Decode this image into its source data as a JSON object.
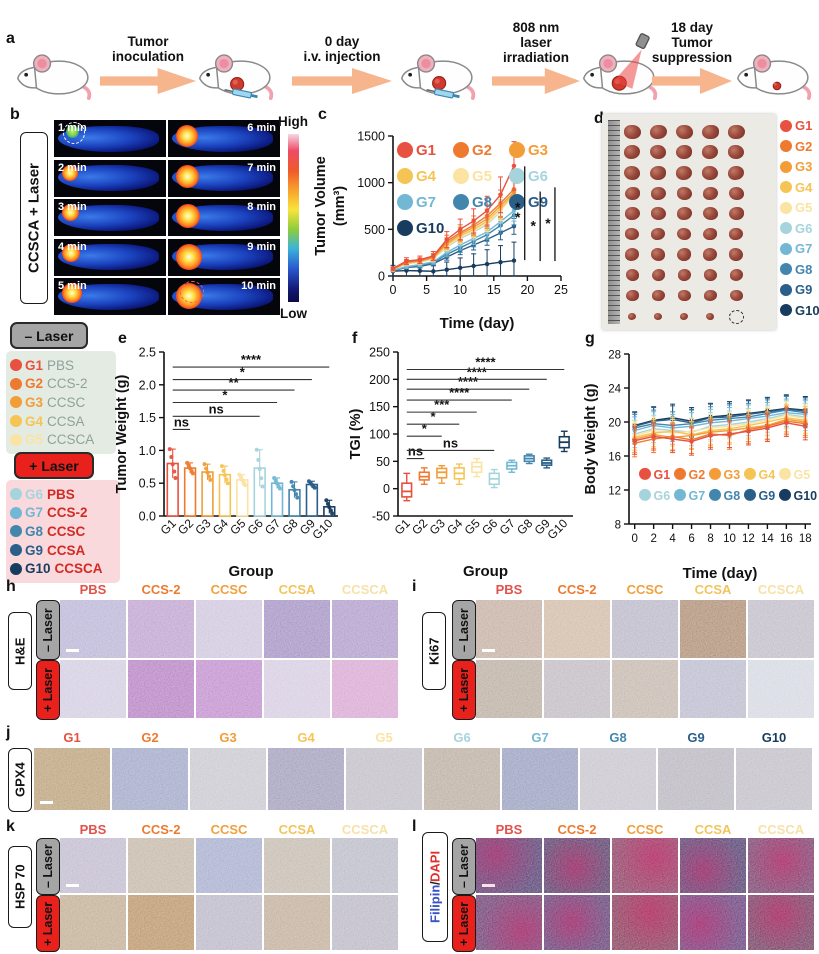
{
  "figure": {
    "groups": [
      {
        "id": "G1",
        "agent": "PBS",
        "color": "#e8503f"
      },
      {
        "id": "G2",
        "agent": "CCS-2",
        "color": "#ee7a30"
      },
      {
        "id": "G3",
        "agent": "CCSC",
        "color": "#f29d38"
      },
      {
        "id": "G4",
        "agent": "CCSA",
        "color": "#f6c454"
      },
      {
        "id": "G5",
        "agent": "CCSCA",
        "color": "#fbe3a3"
      },
      {
        "id": "G6",
        "agent": "PBS",
        "color": "#a6d4dd"
      },
      {
        "id": "G7",
        "agent": "CCS-2",
        "color": "#72b8d4"
      },
      {
        "id": "G8",
        "agent": "CCSC",
        "color": "#4386ad"
      },
      {
        "id": "G9",
        "agent": "CCSA",
        "color": "#2a5f8a"
      },
      {
        "id": "G10",
        "agent": "CCSCA",
        "color": "#173c5f"
      }
    ],
    "treatments": [
      "PBS",
      "CCS-2",
      "CCSC",
      "CCSA",
      "CCSCA"
    ],
    "treatment_colors": [
      "#e0524a",
      "#ee7a30",
      "#f2a03c",
      "#f2c45c",
      "#f6e2a8"
    ]
  },
  "panel_a": {
    "letter": "a",
    "steps": [
      [
        "Tumor",
        "inoculation"
      ],
      [
        "0 day",
        "i.v. injection"
      ],
      [
        "808 nm",
        "laser",
        "irradiation"
      ],
      [
        "18 day",
        "Tumor",
        "suppression"
      ]
    ]
  },
  "panel_b": {
    "letter": "b",
    "side_label": "CCSCA + Laser",
    "times": [
      "1 min",
      "2 min",
      "3 min",
      "4 min",
      "5 min",
      "6 min",
      "7 min",
      "8 min",
      "9 min",
      "10 min"
    ],
    "colorbar_high": "High",
    "colorbar_low": "Low"
  },
  "panel_c": {
    "letter": "c"
  },
  "panel_d": {
    "letter": "d"
  },
  "panel_e": {
    "letter": "e"
  },
  "panel_f": {
    "letter": "f"
  },
  "panel_g": {
    "letter": "g"
  },
  "legend_minus": {
    "title": "– Laser",
    "items": [
      {
        "g": "G1",
        "name": "PBS"
      },
      {
        "g": "G2",
        "name": "CCS-2"
      },
      {
        "g": "G3",
        "name": "CCSC"
      },
      {
        "g": "G4",
        "name": "CCSA"
      },
      {
        "g": "G5",
        "name": "CCSCA"
      }
    ]
  },
  "legend_plus": {
    "title": "+ Laser",
    "items": [
      {
        "g": "G6",
        "name": "PBS"
      },
      {
        "g": "G7",
        "name": "CCS-2"
      },
      {
        "g": "G8",
        "name": "CCSC"
      },
      {
        "g": "G9",
        "name": "CCSA"
      },
      {
        "g": "G10",
        "name": "CCSCA"
      }
    ]
  },
  "chart_data": [
    {
      "id": "tumor_volume",
      "type": "line",
      "xlabel": "Time (day)",
      "ylabel": [
        "Tumor Volume",
        "(mm³)"
      ],
      "xlim": [
        0,
        25
      ],
      "ylim": [
        0,
        1500
      ],
      "xticks": [
        0,
        5,
        10,
        15,
        20,
        25
      ],
      "yticks": [
        0,
        500,
        1000,
        1500
      ],
      "x": [
        0,
        2,
        4,
        6,
        8,
        10,
        12,
        14,
        16,
        18
      ],
      "series": [
        {
          "name": "G1",
          "values": [
            80,
            160,
            175,
            215,
            390,
            500,
            590,
            700,
            870,
            1180
          ],
          "err_frac": 0.22
        },
        {
          "name": "G2",
          "values": [
            75,
            150,
            165,
            205,
            370,
            465,
            545,
            645,
            780,
            930
          ],
          "err_frac": 0.18
        },
        {
          "name": "G3",
          "values": [
            72,
            145,
            160,
            198,
            350,
            448,
            522,
            612,
            752,
            900
          ],
          "err_frac": 0.17
        },
        {
          "name": "G4",
          "values": [
            70,
            140,
            155,
            192,
            335,
            430,
            500,
            585,
            725,
            880
          ],
          "err_frac": 0.16
        },
        {
          "name": "G5",
          "values": [
            68,
            135,
            150,
            186,
            320,
            412,
            482,
            562,
            700,
            858
          ],
          "err_frac": 0.15
        },
        {
          "name": "G6",
          "values": [
            70,
            132,
            148,
            182,
            312,
            402,
            472,
            552,
            692,
            905
          ],
          "err_frac": 0.18
        },
        {
          "name": "G7",
          "values": [
            62,
            100,
            122,
            152,
            252,
            332,
            402,
            472,
            582,
            700
          ],
          "err_frac": 0.16
        },
        {
          "name": "G8",
          "values": [
            60,
            95,
            112,
            142,
            232,
            302,
            372,
            442,
            542,
            652
          ],
          "err_frac": 0.16
        },
        {
          "name": "G9",
          "values": [
            58,
            90,
            102,
            132,
            202,
            272,
            332,
            392,
            462,
            532
          ],
          "err_frac": 0.16
        },
        {
          "name": "G10",
          "values": [
            52,
            58,
            55,
            50,
            68,
            88,
            108,
            128,
            148,
            165
          ],
          "err_frac": 1.2
        }
      ],
      "sig_bars": [
        {
          "x": 19.6,
          "y1": 170,
          "y2": 1175,
          "label": "**"
        },
        {
          "x": 21.9,
          "y1": 160,
          "y2": 905,
          "label": "*"
        },
        {
          "x": 24.1,
          "y1": 160,
          "y2": 950,
          "label": "*"
        }
      ],
      "legend_per_row": 3
    },
    {
      "id": "tumor_weight",
      "type": "bar",
      "xlabel": "Group",
      "ylabel": "Tumor Weight (g)",
      "categories": [
        "G1",
        "G2",
        "G3",
        "G4",
        "G5",
        "G6",
        "G7",
        "G8",
        "G9",
        "G10"
      ],
      "values": [
        0.8,
        0.73,
        0.67,
        0.63,
        0.55,
        0.73,
        0.5,
        0.4,
        0.48,
        0.14
      ],
      "errors": [
        0.22,
        0.08,
        0.12,
        0.13,
        0.08,
        0.28,
        0.08,
        0.12,
        0.05,
        0.1
      ],
      "ylim": [
        0,
        2.5
      ],
      "ytick_values": [
        0,
        0.5,
        1,
        1.5,
        2,
        2.5
      ],
      "ytick_labels": [
        "0.0",
        "0.5",
        "1.0",
        "1.5",
        "2.0",
        "2.5"
      ],
      "sig": [
        {
          "to": 2,
          "y": 1.32,
          "label": "ns"
        },
        {
          "to": 6,
          "y": 1.52,
          "label": "ns"
        },
        {
          "to": 7,
          "y": 1.73,
          "label": "*"
        },
        {
          "to": 8,
          "y": 1.92,
          "label": "**"
        },
        {
          "to": 9,
          "y": 2.08,
          "label": "*"
        },
        {
          "to": 10,
          "y": 2.27,
          "label": "****"
        }
      ]
    },
    {
      "id": "tgi",
      "type": "box",
      "xlabel": "Group",
      "ylabel": "TGI (%)",
      "categories": [
        "G1",
        "G2",
        "G3",
        "G4",
        "G5",
        "G6",
        "G7",
        "G8",
        "G9",
        "G10"
      ],
      "boxes": [
        {
          "lo": -22,
          "q1": -15,
          "med": -5,
          "q3": 10,
          "hi": 28
        },
        {
          "lo": 8,
          "q1": 16,
          "med": 22,
          "q3": 30,
          "hi": 38
        },
        {
          "lo": 10,
          "q1": 20,
          "med": 30,
          "q3": 37,
          "hi": 42
        },
        {
          "lo": 8,
          "q1": 18,
          "med": 28,
          "q3": 38,
          "hi": 45
        },
        {
          "lo": 22,
          "q1": 30,
          "med": 40,
          "q3": 48,
          "hi": 55
        },
        {
          "lo": 2,
          "q1": 8,
          "med": 18,
          "q3": 28,
          "hi": 35
        },
        {
          "lo": 30,
          "q1": 36,
          "med": 42,
          "q3": 48,
          "hi": 52
        },
        {
          "lo": 46,
          "q1": 50,
          "med": 55,
          "q3": 60,
          "hi": 63
        },
        {
          "lo": 38,
          "q1": 43,
          "med": 47,
          "q3": 52,
          "hi": 56
        },
        {
          "lo": 68,
          "q1": 75,
          "med": 85,
          "q3": 95,
          "hi": 105
        }
      ],
      "ylim": [
        -50,
        250
      ],
      "yticks": [
        -50,
        0,
        50,
        100,
        150,
        200,
        250
      ],
      "sig": [
        {
          "to": 2,
          "y": 55,
          "label": "ns"
        },
        {
          "to": 6,
          "y": 70,
          "label": "ns"
        },
        {
          "to": 3,
          "y": 96,
          "label": "*"
        },
        {
          "to": 4,
          "y": 118,
          "label": "*"
        },
        {
          "to": 5,
          "y": 140,
          "label": "***"
        },
        {
          "to": 7,
          "y": 162,
          "label": "****"
        },
        {
          "to": 8,
          "y": 182,
          "label": "****"
        },
        {
          "to": 9,
          "y": 200,
          "label": "****"
        },
        {
          "to": 10,
          "y": 218,
          "label": "****"
        }
      ]
    },
    {
      "id": "body_weight",
      "type": "line",
      "xlabel": "Time (day)",
      "ylabel": [
        "Body Weight (g)"
      ],
      "xlim": [
        -0.6,
        18.6
      ],
      "ylim": [
        8,
        28
      ],
      "xticks": [
        0,
        2,
        4,
        6,
        8,
        10,
        12,
        14,
        16,
        18
      ],
      "yticks": [
        8,
        12,
        16,
        20,
        24,
        28
      ],
      "x": [
        0,
        2,
        4,
        6,
        8,
        10,
        12,
        14,
        16,
        18
      ],
      "err_abs": 1.6,
      "series": [
        {
          "name": "G1",
          "values": [
            17.8,
            18.3,
            18.0,
            17.7,
            18.4,
            18.6,
            18.9,
            19.3,
            19.9,
            19.5
          ]
        },
        {
          "name": "G2",
          "values": [
            17.5,
            18.0,
            18.3,
            17.9,
            18.6,
            18.4,
            19.1,
            19.5,
            20.1,
            19.8
          ]
        },
        {
          "name": "G3",
          "values": [
            18.0,
            18.5,
            18.2,
            18.4,
            18.8,
            19.0,
            19.3,
            19.6,
            20.3,
            20.0
          ]
        },
        {
          "name": "G4",
          "values": [
            18.2,
            18.7,
            18.9,
            18.5,
            19.0,
            19.2,
            19.6,
            20.0,
            20.5,
            20.2
          ]
        },
        {
          "name": "G5",
          "values": [
            18.4,
            19.0,
            18.7,
            18.9,
            19.3,
            19.5,
            19.8,
            20.2,
            20.8,
            20.4
          ]
        },
        {
          "name": "G6",
          "values": [
            18.6,
            19.2,
            19.0,
            18.8,
            19.5,
            19.7,
            20.0,
            20.4,
            20.9,
            20.6
          ]
        },
        {
          "name": "G7",
          "values": [
            19.0,
            19.6,
            19.3,
            19.5,
            19.9,
            20.1,
            20.4,
            20.7,
            21.1,
            20.9
          ]
        },
        {
          "name": "G8",
          "values": [
            19.3,
            19.8,
            19.6,
            19.8,
            20.2,
            20.4,
            20.6,
            21.0,
            21.4,
            21.1
          ]
        },
        {
          "name": "G9",
          "values": [
            19.5,
            20.1,
            20.3,
            19.9,
            20.5,
            20.6,
            20.9,
            21.2,
            21.5,
            21.3
          ]
        },
        {
          "name": "G10",
          "values": [
            19.6,
            20.2,
            20.5,
            20.1,
            20.6,
            20.8,
            21.0,
            21.3,
            21.6,
            21.4
          ]
        }
      ],
      "legend_per_row": 5
    }
  ],
  "histology": {
    "h": {
      "letter": "h",
      "stain": "H&E",
      "columns": [
        "PBS",
        "CCS-2",
        "CCSC",
        "CCSA",
        "CCSCA"
      ],
      "row_labels": [
        "– Laser",
        "+ Laser"
      ],
      "tile_colors": [
        [
          "#aaa2cc",
          "#b08cc4",
          "#c3b8d6",
          "#8d77b5",
          "#9d84be"
        ],
        [
          "#c8c0da",
          "#a463b4",
          "#b273c2",
          "#ccc0da",
          "#cf92c8"
        ]
      ]
    },
    "i": {
      "letter": "i",
      "stain": "Ki67",
      "columns": [
        "PBS",
        "CCS-2",
        "CCSC",
        "CCSA",
        "CCSCA"
      ],
      "row_labels": [
        "– Laser",
        "+ Laser"
      ],
      "tile_colors": [
        [
          "#b79c8c",
          "#c6aa90",
          "#aaa6ba",
          "#9a7252",
          "#b2acba"
        ],
        [
          "#aa9a8a",
          "#b2aab2",
          "#b6a69a",
          "#aaaac2",
          "#caceda"
        ]
      ]
    },
    "j": {
      "letter": "j",
      "stain": "GPX4",
      "columns": [
        "G1",
        "G2",
        "G3",
        "G4",
        "G5",
        "G6",
        "G7",
        "G8",
        "G9",
        "G10"
      ],
      "tile_colors": [
        "#aa8a5a",
        "#8a92ba",
        "#babac4",
        "#8a86aa",
        "#b2aeba",
        "#aa9a8a",
        "#8088b0",
        "#bab6c2",
        "#a8a4b0",
        "#b2aeba"
      ]
    },
    "k": {
      "letter": "k",
      "stain": "HSP 70",
      "columns": [
        "PBS",
        "CCS-2",
        "CCSC",
        "CCSA",
        "CCSCA"
      ],
      "row_labels": [
        "– Laser",
        "+ Laser"
      ],
      "tile_colors": [
        [
          "#b2aac2",
          "#b6a692",
          "#929ac2",
          "#b6aa9a",
          "#aaaaba"
        ],
        [
          "#b29a7a",
          "#aa7a42",
          "#aaa6ba",
          "#b29a82",
          "#aaa6b6"
        ]
      ]
    },
    "l": {
      "letter": "l",
      "stain": "Filipin/DAPI",
      "stain_parts": [
        [
          "Filipin",
          "#3a50c8"
        ],
        [
          "/",
          "#222222"
        ],
        [
          "DAPI",
          "#e0302e"
        ]
      ],
      "columns": [
        "PBS",
        "CCS-2",
        "CCSC",
        "CCSA",
        "CCSCA"
      ],
      "row_labels": [
        "– Laser",
        "+ Laser"
      ],
      "tile_colors": [
        [
          "#2a1050",
          "#300c44",
          "#70103c",
          "#28104c",
          "#581048"
        ],
        [
          "#481050",
          "#3c1054",
          "#680c30",
          "#42105c",
          "#500c38"
        ]
      ]
    }
  }
}
